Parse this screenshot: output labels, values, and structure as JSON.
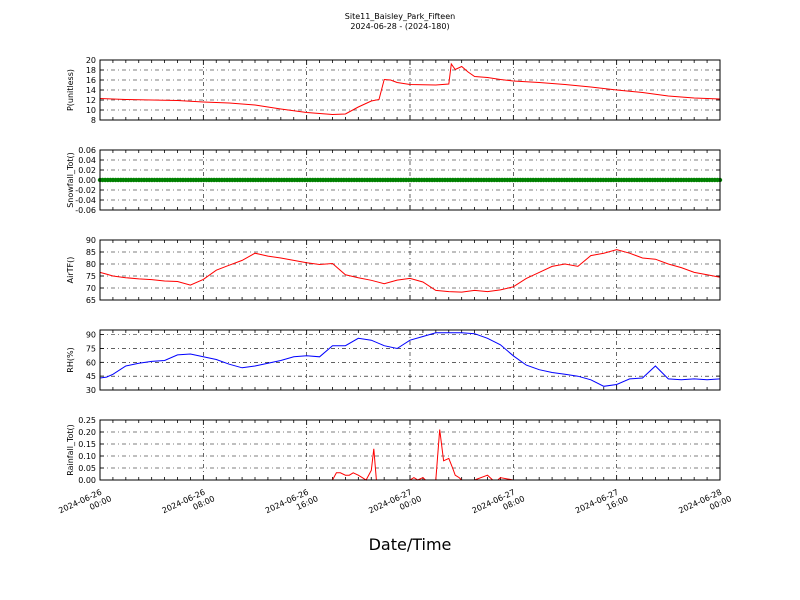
{
  "title": "Site11_Baisley_Park_Fifteen",
  "subtitle": "2024-06-28 - (2024-180)",
  "xlabel": "Date/Time",
  "x_tick_labels": [
    [
      "2024-06-26",
      "00:00"
    ],
    [
      "2024-06-26",
      "08:00"
    ],
    [
      "2024-06-26",
      "16:00"
    ],
    [
      "2024-06-27",
      "00:00"
    ],
    [
      "2024-06-27",
      "08:00"
    ],
    [
      "2024-06-27",
      "16:00"
    ],
    [
      "2024-06-28",
      "00:00"
    ]
  ],
  "chart_data": [
    {
      "type": "line",
      "ylabel": "P(unitless)",
      "ylim": [
        8,
        20
      ],
      "yticks": [
        "8",
        "10",
        "12",
        "14",
        "16",
        "18",
        "20"
      ],
      "grid": true,
      "color": "#ff0000",
      "x": [
        0,
        2,
        4,
        6,
        8,
        10,
        12,
        14,
        16,
        18,
        19,
        20,
        21,
        21.6,
        22,
        22.5,
        23,
        24,
        26,
        27,
        27.2,
        27.5,
        28,
        28.5,
        29,
        30,
        31,
        32,
        34,
        36,
        38,
        40,
        42,
        44,
        46,
        48
      ],
      "values": [
        12.3,
        12.1,
        12.0,
        11.9,
        11.6,
        11.4,
        11.0,
        10.2,
        9.5,
        9.1,
        9.2,
        10.6,
        11.8,
        12.1,
        16.1,
        16.0,
        15.5,
        15.1,
        15.0,
        15.2,
        19.2,
        18.1,
        18.7,
        17.6,
        16.7,
        16.5,
        16.1,
        15.8,
        15.5,
        15.1,
        14.6,
        14.0,
        13.5,
        12.8,
        12.4,
        12.2
      ],
      "line_width": 1
    },
    {
      "type": "scatter",
      "ylabel": "Snowfall_Tot()",
      "ylim": [
        -0.06,
        0.06
      ],
      "yticks": [
        "-0.06",
        "-0.04",
        "-0.02",
        "0.00",
        "0.02",
        "0.04",
        "0.06"
      ],
      "grid": true,
      "color": "#008000",
      "x_range": [
        0,
        48
      ],
      "value": 0.0,
      "points": 240
    },
    {
      "type": "line",
      "ylabel": "AirTF()",
      "ylim": [
        65,
        90
      ],
      "yticks": [
        "65",
        "70",
        "75",
        "80",
        "85",
        "90"
      ],
      "grid": true,
      "color": "#ff0000",
      "x": [
        0,
        0.5,
        1,
        2,
        3,
        4,
        5,
        6,
        7,
        8,
        9,
        10,
        11,
        12,
        13,
        14,
        15,
        16,
        17,
        18,
        19,
        20,
        21,
        22,
        23,
        24,
        25,
        26,
        27,
        28,
        29,
        30,
        31,
        32,
        33,
        34,
        35,
        36,
        37,
        38,
        39,
        40,
        41,
        42,
        43,
        44,
        45,
        46,
        47,
        48
      ],
      "values": [
        76.5,
        75.8,
        75,
        74.3,
        73.8,
        73.5,
        72.9,
        72.7,
        71.2,
        73.6,
        77.4,
        79.5,
        81.5,
        84.5,
        83.3,
        82.5,
        81.5,
        80.5,
        79.8,
        80.2,
        75.5,
        74.3,
        73.2,
        71.8,
        73.3,
        74.0,
        72.5,
        69.0,
        68.5,
        68.3,
        69.0,
        68.5,
        69.2,
        70.5,
        74.0,
        76.5,
        79.0,
        80.0,
        79.0,
        83.5,
        84.5,
        86.0,
        84.5,
        82.5,
        82.0,
        80.0,
        78.5,
        76.5,
        75.5,
        74.5
      ],
      "line_width": 1
    },
    {
      "type": "line",
      "ylabel": "RH(%)",
      "ylim": [
        30,
        95
      ],
      "yticks": [
        "30",
        "45",
        "60",
        "75",
        "90"
      ],
      "grid": true,
      "color": "#0000ff",
      "x": [
        0,
        0.5,
        1,
        2,
        3,
        4,
        5,
        6,
        7,
        8,
        9,
        10,
        11,
        12,
        13,
        14,
        15,
        16,
        17,
        18,
        19,
        20,
        21,
        22,
        23,
        24,
        25,
        26,
        27,
        28,
        29,
        30,
        31,
        32,
        33,
        34,
        35,
        36,
        37,
        38,
        39,
        40,
        41,
        42,
        43,
        44,
        45,
        46,
        47,
        48
      ],
      "values": [
        43,
        44,
        47,
        56,
        59,
        61,
        62,
        68,
        69,
        66,
        63,
        58,
        54,
        56,
        59,
        62,
        66,
        67,
        66,
        78,
        78,
        86,
        84,
        78,
        75,
        84,
        88,
        92,
        92,
        92,
        91,
        86,
        79,
        67,
        57,
        52,
        49,
        47,
        45,
        41,
        34,
        36,
        42,
        43,
        56,
        42,
        41,
        42,
        41,
        42
      ],
      "line_width": 1
    },
    {
      "type": "line",
      "ylabel": "Rainfall_Tot()",
      "ylim": [
        0.0,
        0.25
      ],
      "yticks": [
        "0.00",
        "0.05",
        "0.10",
        "0.15",
        "0.20",
        "0.25"
      ],
      "grid": true,
      "color": "#ff0000",
      "x": [
        0,
        18,
        18.3,
        18.6,
        19,
        19.3,
        19.6,
        20,
        20.3,
        20.6,
        21,
        21.2,
        21.4,
        21.6,
        23,
        24,
        24.3,
        24.6,
        25,
        25.2,
        26,
        26.3,
        26.6,
        27,
        27.3,
        27.5,
        27.8,
        28,
        28.4,
        28.8,
        29,
        30,
        30.4,
        30.8,
        31,
        32,
        33,
        48
      ],
      "values": [
        0,
        0,
        0.03,
        0.03,
        0.02,
        0.02,
        0.03,
        0.02,
        0.01,
        0.0,
        0.04,
        0.13,
        0.0,
        0.0,
        0.0,
        0.0,
        0.01,
        0.0,
        0.01,
        0.0,
        0.0,
        0.21,
        0.08,
        0.09,
        0.05,
        0.02,
        0.01,
        0.0,
        0.0,
        0.0,
        0.0,
        0.02,
        0.0,
        0.0,
        0.01,
        0.0,
        0.0,
        0.0
      ],
      "line_width": 1
    }
  ]
}
